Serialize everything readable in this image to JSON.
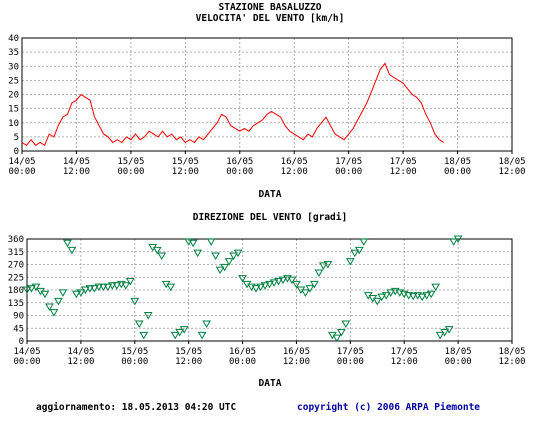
{
  "header": {
    "station": "STAZIONE BASALUZZO",
    "speed_title": "VELOCITA' DEL VENTO [km/h]",
    "direction_title": "DIREZIONE DEL VENTO [gradi]"
  },
  "footer": {
    "updated": "aggiornamento: 18.05.2013 04:20 UTC",
    "copyright": "copyright (c) 2006 ARPA Piemonte"
  },
  "colors": {
    "speed_line": "#ff0000",
    "direction_marker": "#008040",
    "grid": "#999999",
    "copyright_text": "#0000a0"
  },
  "chart_data": [
    {
      "type": "line",
      "title": "VELOCITA' DEL VENTO [km/h]",
      "xlabel": "DATA",
      "ylabel": "",
      "x_unit": "hours since 14/05 00:00",
      "xlim": [
        0,
        108
      ],
      "ylim": [
        0,
        40
      ],
      "yticks": [
        0,
        5,
        10,
        15,
        20,
        25,
        30,
        35,
        40
      ],
      "xtick_labels": [
        [
          "14/05",
          "00:00"
        ],
        [
          "14/05",
          "12:00"
        ],
        [
          "15/05",
          "00:00"
        ],
        [
          "15/05",
          "12:00"
        ],
        [
          "16/05",
          "00:00"
        ],
        [
          "16/05",
          "12:00"
        ],
        [
          "17/05",
          "00:00"
        ],
        [
          "17/05",
          "12:00"
        ],
        [
          "18/05",
          "00:00"
        ],
        [
          "18/05",
          "12:00"
        ]
      ],
      "grid": true,
      "series": [
        {
          "values": [
            [
              0,
              3
            ],
            [
              1,
              2
            ],
            [
              2,
              4
            ],
            [
              3,
              2
            ],
            [
              4,
              3
            ],
            [
              5,
              2
            ],
            [
              6,
              6
            ],
            [
              7,
              5
            ],
            [
              8,
              9
            ],
            [
              9,
              12
            ],
            [
              10,
              13
            ],
            [
              11,
              17
            ],
            [
              12,
              18
            ],
            [
              13,
              20
            ],
            [
              14,
              19
            ],
            [
              15,
              18
            ],
            [
              16,
              12
            ],
            [
              17,
              9
            ],
            [
              18,
              6
            ],
            [
              19,
              5
            ],
            [
              20,
              3
            ],
            [
              21,
              4
            ],
            [
              22,
              3
            ],
            [
              23,
              5
            ],
            [
              24,
              4
            ],
            [
              25,
              6
            ],
            [
              26,
              4
            ],
            [
              27,
              5
            ],
            [
              28,
              7
            ],
            [
              29,
              6
            ],
            [
              30,
              5
            ],
            [
              31,
              7
            ],
            [
              32,
              5
            ],
            [
              33,
              6
            ],
            [
              34,
              4
            ],
            [
              35,
              5
            ],
            [
              36,
              3
            ],
            [
              37,
              4
            ],
            [
              38,
              3
            ],
            [
              39,
              5
            ],
            [
              40,
              4
            ],
            [
              41,
              6
            ],
            [
              42,
              8
            ],
            [
              43,
              10
            ],
            [
              44,
              13
            ],
            [
              45,
              12
            ],
            [
              46,
              9
            ],
            [
              47,
              8
            ],
            [
              48,
              7
            ],
            [
              49,
              8
            ],
            [
              50,
              7
            ],
            [
              51,
              9
            ],
            [
              52,
              10
            ],
            [
              53,
              11
            ],
            [
              54,
              13
            ],
            [
              55,
              14
            ],
            [
              56,
              13
            ],
            [
              57,
              12
            ],
            [
              58,
              9
            ],
            [
              59,
              7
            ],
            [
              60,
              6
            ],
            [
              61,
              5
            ],
            [
              62,
              4
            ],
            [
              63,
              6
            ],
            [
              64,
              5
            ],
            [
              65,
              8
            ],
            [
              66,
              10
            ],
            [
              67,
              12
            ],
            [
              68,
              9
            ],
            [
              69,
              6
            ],
            [
              70,
              5
            ],
            [
              71,
              4
            ],
            [
              72,
              6
            ],
            [
              73,
              8
            ],
            [
              74,
              11
            ],
            [
              75,
              14
            ],
            [
              76,
              17
            ],
            [
              77,
              21
            ],
            [
              78,
              25
            ],
            [
              79,
              29
            ],
            [
              80,
              31
            ],
            [
              81,
              27
            ],
            [
              82,
              26
            ],
            [
              83,
              25
            ],
            [
              84,
              24
            ],
            [
              85,
              22
            ],
            [
              86,
              20
            ],
            [
              87,
              19
            ],
            [
              88,
              17
            ],
            [
              89,
              13
            ],
            [
              90,
              10
            ],
            [
              91,
              6
            ],
            [
              92,
              4
            ],
            [
              93,
              3
            ]
          ]
        }
      ]
    },
    {
      "type": "scatter",
      "title": "DIREZIONE DEL VENTO [gradi]",
      "xlabel": "DATA",
      "ylabel": "",
      "x_unit": "hours since 14/05 00:00",
      "xlim": [
        0,
        108
      ],
      "ylim": [
        0,
        360
      ],
      "yticks": [
        0,
        45,
        90,
        135,
        180,
        225,
        270,
        315,
        360
      ],
      "xtick_labels": [
        [
          "14/05",
          "00:00"
        ],
        [
          "14/05",
          "12:00"
        ],
        [
          "15/05",
          "00:00"
        ],
        [
          "15/05",
          "12:00"
        ],
        [
          "16/05",
          "00:00"
        ],
        [
          "16/05",
          "12:00"
        ],
        [
          "17/05",
          "00:00"
        ],
        [
          "17/05",
          "12:00"
        ],
        [
          "18/05",
          "00:00"
        ],
        [
          "18/05",
          "12:00"
        ]
      ],
      "grid": true,
      "marker": "triangle-down",
      "series": [
        {
          "values": [
            [
              0,
              180
            ],
            [
              1,
              185
            ],
            [
              2,
              190
            ],
            [
              3,
              175
            ],
            [
              4,
              165
            ],
            [
              5,
              120
            ],
            [
              6,
              100
            ],
            [
              7,
              140
            ],
            [
              8,
              170
            ],
            [
              9,
              345
            ],
            [
              10,
              320
            ],
            [
              11,
              165
            ],
            [
              12,
              170
            ],
            [
              13,
              180
            ],
            [
              14,
              185
            ],
            [
              15,
              185
            ],
            [
              16,
              190
            ],
            [
              17,
              190
            ],
            [
              18,
              190
            ],
            [
              19,
              195
            ],
            [
              20,
              195
            ],
            [
              21,
              200
            ],
            [
              22,
              195
            ],
            [
              23,
              210
            ],
            [
              24,
              140
            ],
            [
              25,
              60
            ],
            [
              26,
              20
            ],
            [
              27,
              90
            ],
            [
              28,
              330
            ],
            [
              29,
              320
            ],
            [
              30,
              300
            ],
            [
              31,
              200
            ],
            [
              32,
              190
            ],
            [
              33,
              20
            ],
            [
              34,
              30
            ],
            [
              35,
              40
            ],
            [
              36,
              350
            ],
            [
              37,
              345
            ],
            [
              38,
              310
            ],
            [
              39,
              20
            ],
            [
              40,
              60
            ],
            [
              41,
              350
            ],
            [
              42,
              300
            ],
            [
              43,
              250
            ],
            [
              44,
              260
            ],
            [
              45,
              280
            ],
            [
              46,
              300
            ],
            [
              47,
              310
            ],
            [
              48,
              220
            ],
            [
              49,
              200
            ],
            [
              50,
              190
            ],
            [
              51,
              185
            ],
            [
              52,
              190
            ],
            [
              53,
              195
            ],
            [
              54,
              200
            ],
            [
              55,
              205
            ],
            [
              56,
              210
            ],
            [
              57,
              215
            ],
            [
              58,
              220
            ],
            [
              59,
              215
            ],
            [
              60,
              200
            ],
            [
              61,
              180
            ],
            [
              62,
              170
            ],
            [
              63,
              185
            ],
            [
              64,
              200
            ],
            [
              65,
              240
            ],
            [
              66,
              265
            ],
            [
              67,
              270
            ],
            [
              68,
              20
            ],
            [
              69,
              10
            ],
            [
              70,
              30
            ],
            [
              71,
              60
            ],
            [
              72,
              280
            ],
            [
              73,
              310
            ],
            [
              74,
              320
            ],
            [
              75,
              350
            ],
            [
              76,
              160
            ],
            [
              77,
              150
            ],
            [
              78,
              140
            ],
            [
              79,
              155
            ],
            [
              80,
              160
            ],
            [
              81,
              170
            ],
            [
              82,
              175
            ],
            [
              83,
              170
            ],
            [
              84,
              165
            ],
            [
              85,
              160
            ],
            [
              86,
              158
            ],
            [
              87,
              160
            ],
            [
              88,
              155
            ],
            [
              89,
              160
            ],
            [
              90,
              165
            ],
            [
              91,
              190
            ],
            [
              92,
              20
            ],
            [
              93,
              30
            ],
            [
              94,
              40
            ],
            [
              95,
              350
            ],
            [
              96,
              360
            ]
          ]
        }
      ]
    }
  ]
}
